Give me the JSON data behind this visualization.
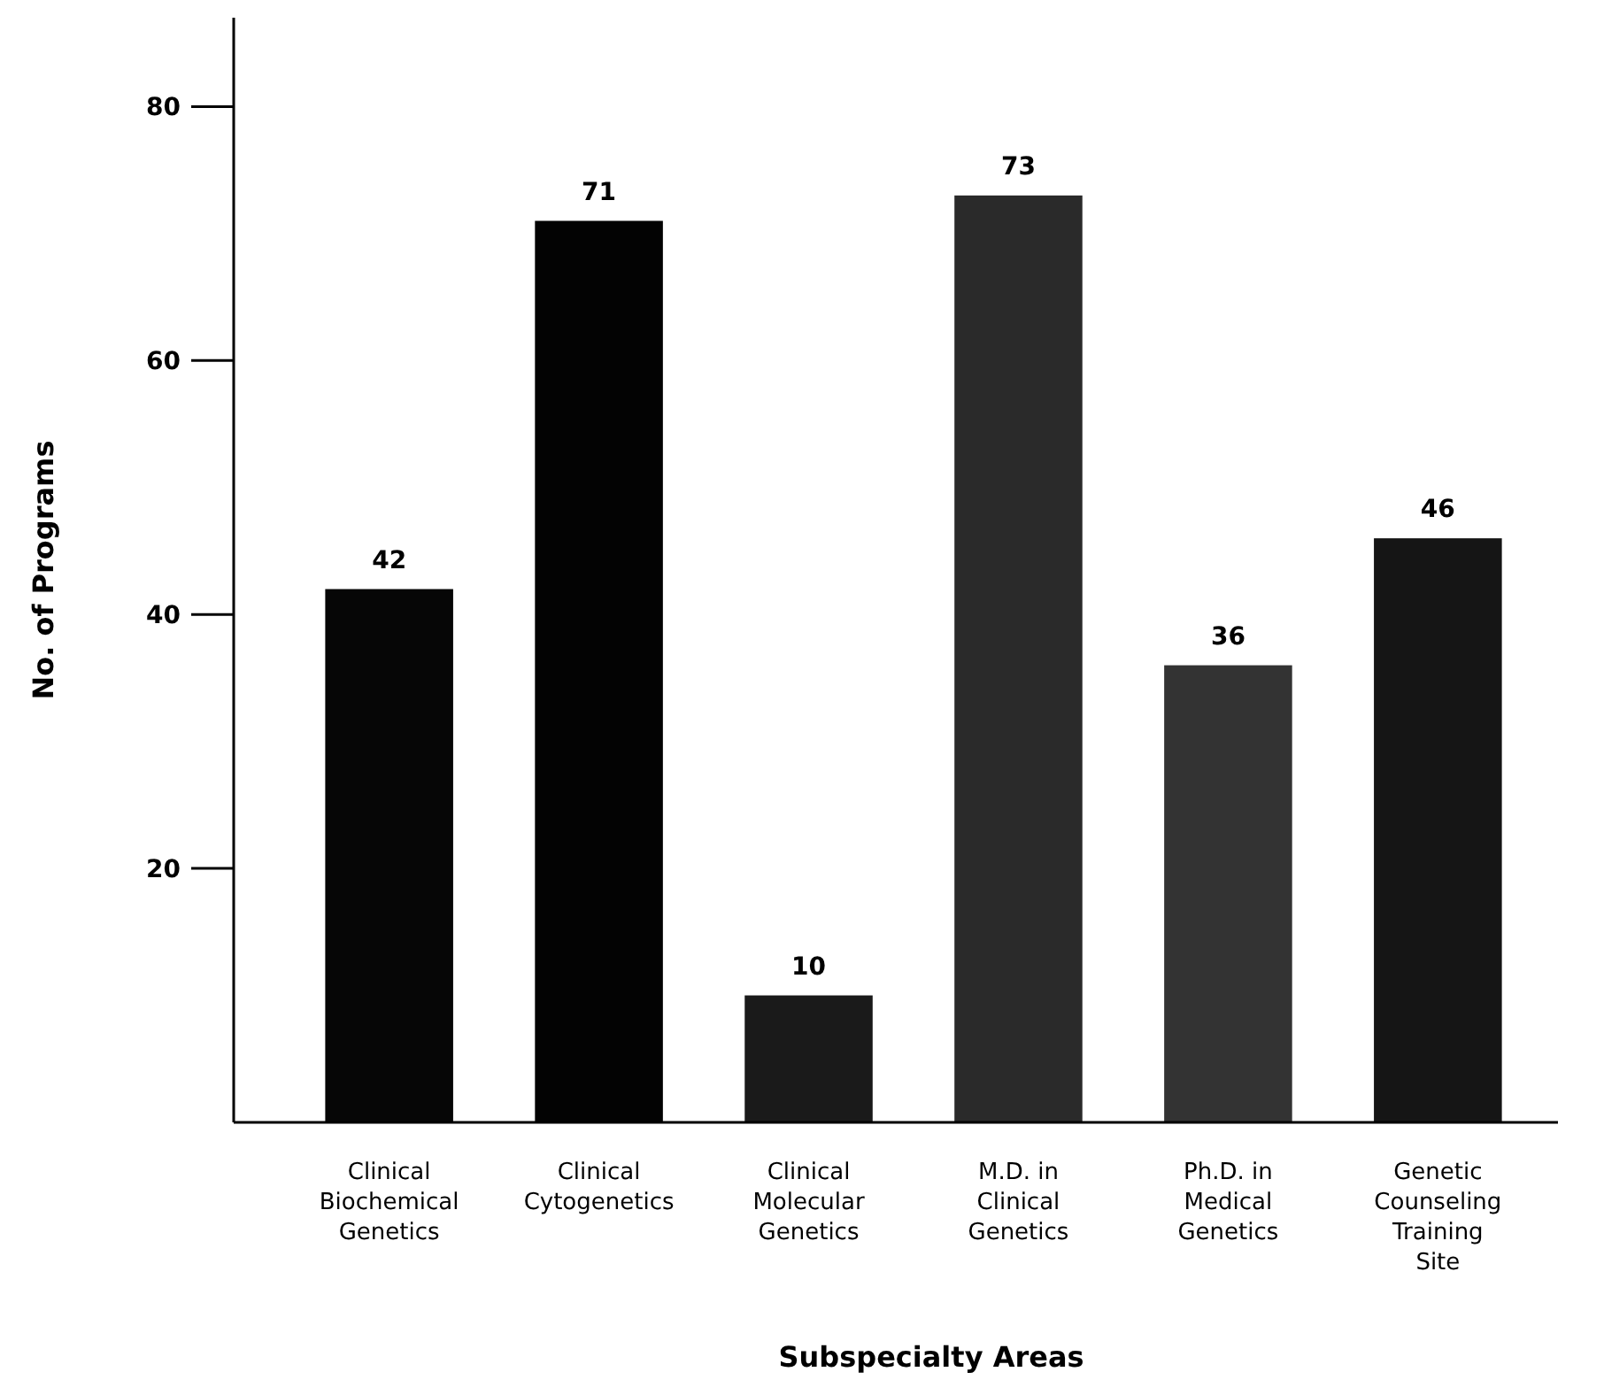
{
  "chart_data": {
    "type": "bar",
    "xlabel": "Subspecialty Areas",
    "ylabel": "No. of Programs",
    "categories": [
      "Clinical\nBiochemical\nGenetics",
      "Clinical\nCytogenetics",
      "Clinical\nMolecular\nGenetics",
      "M.D. in\nClinical\nGenetics",
      "Ph.D. in\nMedical\nGenetics",
      "Genetic\nCounseling\nTraining\nSite"
    ],
    "values": [
      42,
      71,
      10,
      73,
      36,
      46
    ],
    "colors": [
      "#060606",
      "#030303",
      "#1a1a1a",
      "#2a2a2a",
      "#333333",
      "#151515"
    ],
    "ylim": [
      0,
      87
    ],
    "yticks": [
      20,
      40,
      60,
      80
    ],
    "data_labels": true,
    "grid": false
  }
}
